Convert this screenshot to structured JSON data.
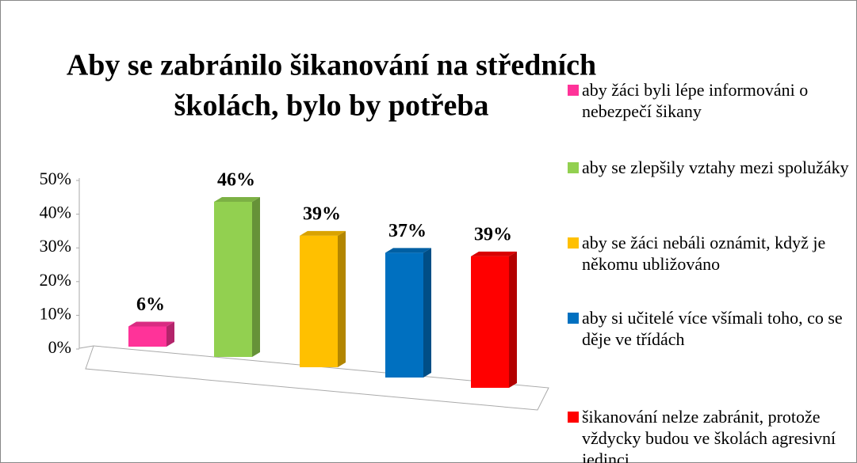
{
  "chart_data": {
    "type": "bar3d",
    "title": [
      "Aby se zabránilo  šikanování na středních",
      "školách, bylo by potřeba"
    ],
    "categories": [
      "aby  žáci byli  lépe informováni o nebezpečí  šikany",
      "aby se zlepšily vztahy mezi spolužáky",
      "aby se žáci nebáli oznámit, když je někomu ubližováno",
      "aby si učitelé více všímali toho, co se děje ve třídách",
      "šikanování nelze zabránit, protože vždycky budou ve školách agresivní jedinci"
    ],
    "values": [
      6,
      46,
      39,
      37,
      39
    ],
    "value_labels": [
      "6%",
      "46%",
      "39%",
      "37%",
      "39%"
    ],
    "colors": [
      "#ff3399",
      "#92d050",
      "#ffc000",
      "#0070c0",
      "#ff0000"
    ],
    "ylim": [
      0,
      50
    ],
    "yticks": [
      {
        "value": 0,
        "label": "0%"
      },
      {
        "value": 10,
        "label": "10%"
      },
      {
        "value": 20,
        "label": "20%"
      },
      {
        "value": 30,
        "label": "30%"
      },
      {
        "value": 40,
        "label": "40%"
      },
      {
        "value": 50,
        "label": "50%"
      }
    ],
    "legend": "right"
  }
}
